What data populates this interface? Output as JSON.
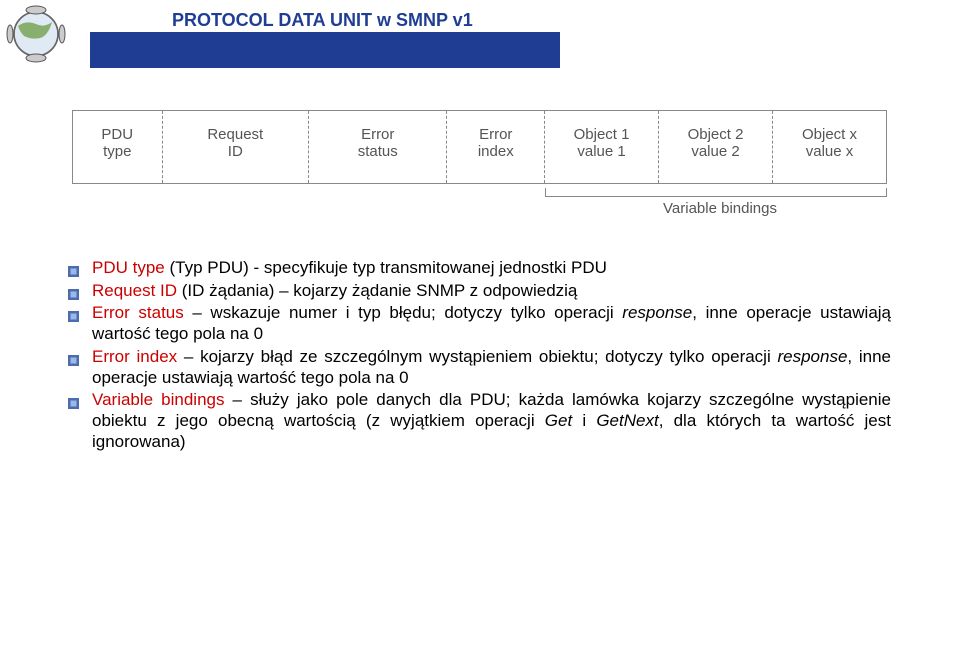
{
  "header": {
    "title": "PROTOCOL DATA UNIT w SMNP v1",
    "title_color": "#1f3e93",
    "bar_color": "#1f3e93"
  },
  "pdu_table": {
    "cells": [
      {
        "line1": "PDU",
        "line2": "type"
      },
      {
        "line1": "Request",
        "line2": "ID"
      },
      {
        "line1": "Error",
        "line2": "status"
      },
      {
        "line1": "Error",
        "line2": "index"
      },
      {
        "line1": "Object 1",
        "line2": "value 1"
      },
      {
        "line1": "Object 2",
        "line2": "value 2"
      },
      {
        "line1": "Object x",
        "line2": "value x"
      }
    ],
    "bracket_label": "Variable bindings",
    "col_widths_pct": [
      11,
      18,
      17,
      12,
      14,
      14,
      14
    ],
    "border_color": "#888888",
    "text_color": "#555555",
    "font_size": 15
  },
  "bullets": [
    {
      "key": "PDU type",
      "desc": " (Typ PDU) -  specyfikuje typ transmitowanej jednostki PDU"
    },
    {
      "key": "Request ID",
      "desc": " (ID żądania) – kojarzy żądanie SNMP z odpowiedzią"
    },
    {
      "key": "Error status",
      "desc_parts": [
        {
          "t": " – wskazuje numer i typ błędu; dotyczy tylko operacji ",
          "i": false
        },
        {
          "t": "response",
          "i": true
        },
        {
          "t": ", inne operacje ustawiają wartość tego pola na 0",
          "i": false
        }
      ]
    },
    {
      "key": "Error index",
      "desc_parts": [
        {
          "t": " – kojarzy błąd ze szczególnym wystąpieniem obiektu; dotyczy tylko operacji ",
          "i": false
        },
        {
          "t": "response",
          "i": true
        },
        {
          "t": ", inne operacje ustawiają wartość tego pola na 0",
          "i": false
        }
      ]
    },
    {
      "key": "Variable bindings",
      "desc_parts": [
        {
          "t": " – służy jako pole danych dla PDU; każda lamówka kojarzy szczególne wystąpienie obiektu z jego obecną wartością (z wyjątkiem operacji ",
          "i": false
        },
        {
          "t": "Get",
          "i": true
        },
        {
          "t": " i ",
          "i": false
        },
        {
          "t": "GetNext",
          "i": true
        },
        {
          "t": ", dla których ta wartość jest ignorowana)",
          "i": false
        }
      ]
    }
  ],
  "style": {
    "key_color": "#cc0000",
    "body_color": "#000000",
    "body_font_size": 17,
    "bullet_outer": "#4a6db0",
    "bullet_inner": "#9db7e6"
  }
}
